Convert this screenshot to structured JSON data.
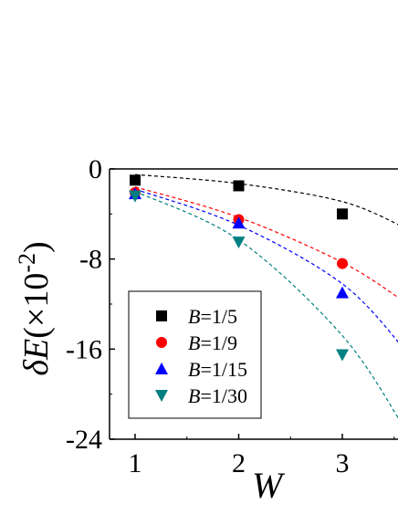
{
  "chart_data": {
    "type": "scatter",
    "xlabel": "W",
    "ylabel_symbol": "δE",
    "ylabel_open": "(×10",
    "ylabel_exp": "-2",
    "ylabel_close": ")",
    "xlim": [
      0.7,
      3.55
    ],
    "ylim": [
      -24,
      0
    ],
    "xticks": [
      1,
      2,
      3
    ],
    "yticks": [
      0,
      -8,
      -16,
      -24
    ],
    "legend_position": "bottom-left",
    "series": [
      {
        "name_var": "B",
        "name_value": "=1/5",
        "marker": "square",
        "color": "#000000",
        "x": [
          1,
          2,
          3
        ],
        "y": [
          -1.0,
          -1.5,
          -4.0
        ],
        "fit": [
          -0.5,
          -1.3,
          -2.9,
          -5.2
        ]
      },
      {
        "name_var": "B",
        "name_value": "=1/9",
        "marker": "circle",
        "color": "#ff0000",
        "x": [
          1,
          2,
          3
        ],
        "y": [
          -2.1,
          -4.5,
          -8.4
        ],
        "fit": [
          -1.6,
          -4.3,
          -8.3,
          -11.8
        ]
      },
      {
        "name_var": "B",
        "name_value": "=1/15",
        "marker": "triangle-up",
        "color": "#0000ff",
        "x": [
          1,
          2,
          3
        ],
        "y": [
          -2.2,
          -4.8,
          -11.0
        ],
        "fit": [
          -1.8,
          -5.0,
          -10.2,
          -16.0
        ]
      },
      {
        "name_var": "B",
        "name_value": "=1/30",
        "marker": "triangle-down",
        "color": "#008080",
        "x": [
          1,
          2,
          3
        ],
        "y": [
          -2.4,
          -6.5,
          -16.5
        ],
        "fit": [
          -2.0,
          -6.3,
          -14.8,
          -23.0
        ]
      }
    ]
  }
}
